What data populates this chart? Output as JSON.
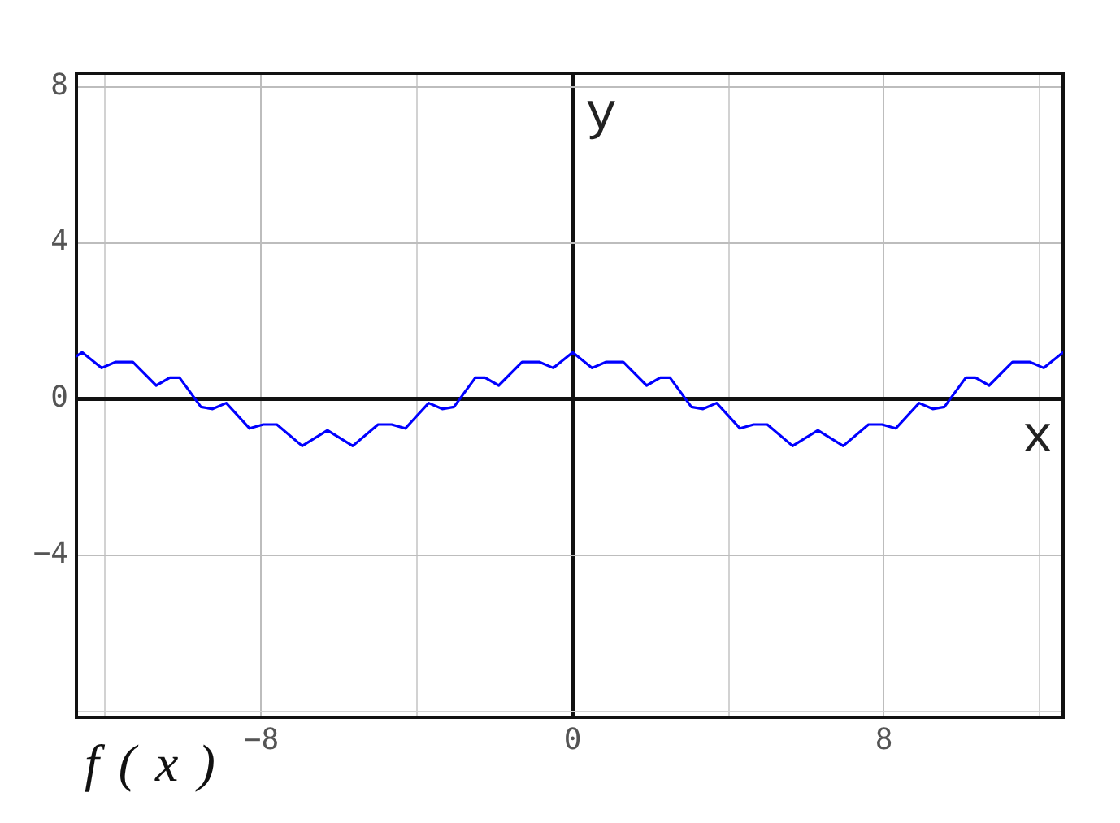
{
  "chart_data": {
    "type": "line",
    "xlabel": "x",
    "ylabel": "y",
    "annotations": [
      "f ( x )"
    ],
    "x": [
      -12.75,
      -12.6,
      -12.1,
      -11.75,
      -11.3,
      -10.7,
      -10.35,
      -10.1,
      -9.55,
      -9.25,
      -8.9,
      -8.3,
      -7.95,
      -7.6,
      -6.95,
      -6.3,
      -5.65,
      -5.0,
      -4.65,
      -4.3,
      -3.7,
      -3.35,
      -3.05,
      -2.5,
      -2.25,
      -1.9,
      -1.3,
      -0.85,
      -0.5,
      0,
      0.5,
      0.85,
      1.3,
      1.9,
      2.25,
      2.5,
      3.05,
      3.35,
      3.7,
      4.3,
      4.65,
      5.0,
      5.65,
      6.3,
      6.95,
      7.6,
      7.95,
      8.3,
      8.9,
      9.25,
      9.55,
      10.1,
      10.35,
      10.7,
      11.3,
      11.75,
      12.1,
      12.6
    ],
    "series": [
      {
        "color": "#0000ff",
        "values": [
          1.1,
          1.2,
          0.8,
          0.95,
          0.95,
          0.35,
          0.55,
          0.55,
          -0.2,
          -0.25,
          -0.1,
          -0.75,
          -0.65,
          -0.65,
          -1.2,
          -0.8,
          -1.2,
          -0.65,
          -0.65,
          -0.75,
          -0.1,
          -0.25,
          -0.2,
          0.55,
          0.55,
          0.35,
          0.95,
          0.95,
          0.8,
          1.2,
          0.8,
          0.95,
          0.95,
          0.35,
          0.55,
          0.55,
          -0.2,
          -0.25,
          -0.1,
          -0.75,
          -0.65,
          -0.65,
          -1.2,
          -0.8,
          -1.2,
          -0.65,
          -0.65,
          -0.75,
          -0.1,
          -0.25,
          -0.2,
          0.55,
          0.55,
          0.35,
          0.95,
          0.95,
          0.8,
          1.2
        ]
      }
    ],
    "xlim": [
      -12.75,
      12.6
    ],
    "ylim": [
      -8.15,
      8.35
    ],
    "xticks": [
      {
        "value": -12,
        "label": null
      },
      {
        "value": -8,
        "label": "−8"
      },
      {
        "value": -4,
        "label": null
      },
      0,
      {
        "value": 4,
        "label": null
      },
      8,
      {
        "value": 12,
        "label": null
      }
    ],
    "yticks": [
      {
        "value": -8,
        "label": null
      },
      {
        "value": -4,
        "label": "−4"
      },
      0,
      4,
      8
    ],
    "grid": true
  }
}
